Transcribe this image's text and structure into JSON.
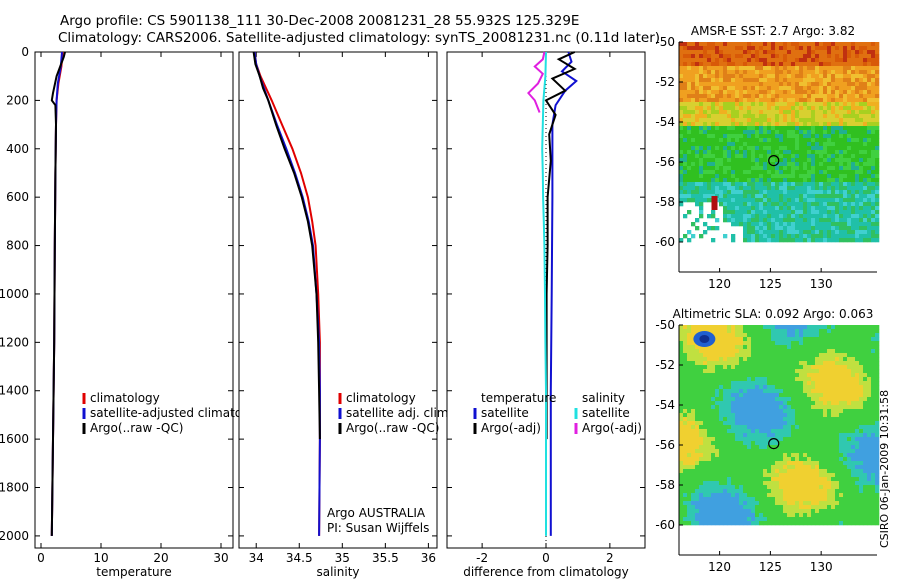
{
  "header": {
    "line1": "Argo profile: CS 5901138_111 30-Dec-2008 20081231_28 55.932S 125.329E",
    "line2": "Climatology: CARS2006. Satellite-adjusted climatology: synTS_20081231.nc (0.11d later)"
  },
  "side_label": "CSIRO 06-Jan-2009 10:31:58",
  "colors": {
    "climatology": "#e00000",
    "satellite": "#1010d0",
    "argo": "#000000",
    "argo_adj": "#e020e0",
    "sat_salinity": "#20e0e0",
    "marker": "#000000"
  },
  "chart_data": [
    {
      "type": "line",
      "name": "temperature-profile",
      "xlabel": "temperature",
      "xlim": [
        -1,
        32
      ],
      "ylim": [
        2050,
        0
      ],
      "xticks": [
        0,
        10,
        20,
        30
      ],
      "yticks": [
        0,
        200,
        400,
        600,
        800,
        1000,
        1200,
        1400,
        1600,
        1800,
        2000
      ],
      "legend": [
        "climatology",
        "satellite-adjusted climatology",
        "Argo(..raw -QC)"
      ],
      "series": [
        {
          "name": "climatology",
          "color_key": "climatology",
          "points": [
            [
              3.6,
              0
            ],
            [
              3.4,
              60
            ],
            [
              2.9,
              130
            ],
            [
              2.6,
              200
            ],
            [
              2.5,
              300
            ],
            [
              2.4,
              500
            ],
            [
              2.3,
              800
            ],
            [
              2.2,
              1200
            ],
            [
              2.0,
              1600
            ],
            [
              1.8,
              2000
            ]
          ]
        },
        {
          "name": "satellite-adjusted climatology",
          "color_key": "satellite",
          "points": [
            [
              3.5,
              0
            ],
            [
              3.3,
              60
            ],
            [
              2.8,
              130
            ],
            [
              2.6,
              200
            ],
            [
              2.5,
              300
            ],
            [
              2.4,
              500
            ],
            [
              2.3,
              800
            ],
            [
              2.2,
              1200
            ],
            [
              2.0,
              1600
            ],
            [
              1.8,
              2000
            ]
          ]
        },
        {
          "name": "Argo(..raw -QC)",
          "color_key": "argo",
          "points": [
            [
              4.0,
              0
            ],
            [
              3.8,
              20
            ],
            [
              3.2,
              60
            ],
            [
              2.6,
              100
            ],
            [
              2.0,
              170
            ],
            [
              1.8,
              200
            ],
            [
              2.4,
              220
            ],
            [
              2.5,
              300
            ],
            [
              2.4,
              500
            ],
            [
              2.3,
              800
            ],
            [
              2.2,
              1200
            ],
            [
              2.0,
              1600
            ],
            [
              1.8,
              2000
            ]
          ]
        }
      ]
    },
    {
      "type": "line",
      "name": "salinity-profile",
      "xlabel": "salinity",
      "xlim": [
        33.8,
        36.1
      ],
      "ylim": [
        2050,
        0
      ],
      "xticks": [
        34,
        34.5,
        35,
        35.5,
        36
      ],
      "xtick_labels": [
        "34",
        "34.5",
        "35",
        "35.5",
        "36"
      ],
      "legend": [
        "climatology",
        "satellite adj. clim.",
        "Argo(..raw -QC)"
      ],
      "annotation": [
        "Argo AUSTRALIA",
        "PI: Susan Wijffels"
      ],
      "series": [
        {
          "name": "climatology",
          "color_key": "climatology",
          "points": [
            [
              33.98,
              0
            ],
            [
              34.0,
              50
            ],
            [
              34.05,
              100
            ],
            [
              34.18,
              200
            ],
            [
              34.3,
              300
            ],
            [
              34.42,
              400
            ],
            [
              34.52,
              500
            ],
            [
              34.6,
              600
            ],
            [
              34.65,
              700
            ],
            [
              34.69,
              800
            ],
            [
              34.72,
              1000
            ],
            [
              34.74,
              1200
            ],
            [
              34.74,
              1400
            ],
            [
              34.74,
              1600
            ],
            [
              34.73,
              2000
            ]
          ]
        },
        {
          "name": "satellite adj. clim.",
          "color_key": "satellite",
          "points": [
            [
              33.98,
              0
            ],
            [
              34.0,
              50
            ],
            [
              34.04,
              100
            ],
            [
              34.14,
              200
            ],
            [
              34.24,
              300
            ],
            [
              34.35,
              400
            ],
            [
              34.45,
              500
            ],
            [
              34.54,
              600
            ],
            [
              34.61,
              700
            ],
            [
              34.66,
              800
            ],
            [
              34.7,
              1000
            ],
            [
              34.73,
              1200
            ],
            [
              34.74,
              1400
            ],
            [
              34.74,
              1600
            ],
            [
              34.73,
              2000
            ]
          ]
        },
        {
          "name": "Argo(..raw -QC)",
          "color_key": "argo",
          "points": [
            [
              33.97,
              0
            ],
            [
              33.99,
              50
            ],
            [
              34.04,
              100
            ],
            [
              34.08,
              150
            ],
            [
              34.14,
              200
            ],
            [
              34.23,
              300
            ],
            [
              34.33,
              400
            ],
            [
              34.44,
              500
            ],
            [
              34.53,
              600
            ],
            [
              34.6,
              700
            ],
            [
              34.65,
              800
            ],
            [
              34.7,
              1000
            ],
            [
              34.72,
              1200
            ],
            [
              34.73,
              1400
            ],
            [
              34.74,
              1600
            ]
          ]
        }
      ]
    },
    {
      "type": "line",
      "name": "difference-profile",
      "xlabel": "difference from climatology",
      "xlim": [
        -3.1,
        3.1
      ],
      "ylim": [
        2050,
        0
      ],
      "xticks": [
        -2,
        0,
        2
      ],
      "legend_left_title": "temperature",
      "legend_left": [
        "satellite",
        "Argo(-adj)"
      ],
      "legend_right_title": "salinity",
      "legend_right": [
        "satellite",
        "Argo(-adj)"
      ],
      "series": [
        {
          "name": "temperature satellite",
          "color_key": "satellite",
          "points": [
            [
              0.7,
              0
            ],
            [
              0.8,
              40
            ],
            [
              0.5,
              80
            ],
            [
              0.95,
              120
            ],
            [
              0.6,
              160
            ],
            [
              0.3,
              220
            ],
            [
              0.2,
              300
            ],
            [
              0.2,
              600
            ],
            [
              0.18,
              1000
            ],
            [
              0.15,
              1400
            ],
            [
              0.15,
              2000
            ]
          ]
        },
        {
          "name": "temperature Argo(-adj)",
          "color_key": "argo",
          "points": [
            [
              0.9,
              0
            ],
            [
              0.4,
              30
            ],
            [
              0.9,
              70
            ],
            [
              0.2,
              110
            ],
            [
              0.6,
              160
            ],
            [
              0.0,
              200
            ],
            [
              0.3,
              260
            ],
            [
              0.1,
              340
            ],
            [
              0.15,
              450
            ],
            [
              0.05,
              600
            ],
            [
              0.05,
              800
            ],
            [
              0.02,
              1000
            ],
            [
              0.02,
              1400
            ],
            [
              0.02,
              1600
            ]
          ]
        },
        {
          "name": "salinity satellite",
          "color_key": "sat_salinity",
          "points": [
            [
              0.0,
              0
            ],
            [
              -0.02,
              100
            ],
            [
              -0.08,
              200
            ],
            [
              -0.1,
              300
            ],
            [
              -0.12,
              400
            ],
            [
              -0.1,
              500
            ],
            [
              -0.09,
              600
            ],
            [
              -0.07,
              700
            ],
            [
              -0.05,
              800
            ],
            [
              -0.03,
              1000
            ],
            [
              -0.02,
              1200
            ],
            [
              0.0,
              1400
            ],
            [
              0.0,
              2000
            ]
          ]
        },
        {
          "name": "salinity Argo(-adj)",
          "color_key": "argo_adj",
          "points": [
            [
              -0.05,
              0
            ],
            [
              -0.1,
              30
            ],
            [
              -0.35,
              60
            ],
            [
              -0.1,
              90
            ],
            [
              -0.25,
              130
            ],
            [
              -0.55,
              170
            ],
            [
              -0.35,
              200
            ],
            [
              -0.2,
              250
            ]
          ]
        }
      ]
    },
    {
      "type": "heatmap",
      "name": "sst-map",
      "title": "AMSR-E SST: 2.7 Argo: 3.82",
      "xlim": [
        116,
        135.5
      ],
      "ylim": [
        -61.5,
        -50
      ],
      "xticks": [
        120,
        125,
        130
      ],
      "yticks": [
        -50,
        -52,
        -54,
        -56,
        -58,
        -60
      ],
      "marker": [
        125.33,
        -55.93
      ]
    },
    {
      "type": "heatmap",
      "name": "sla-map",
      "title": "Altimetric SLA: 0.092 Argo: 0.063",
      "xlim": [
        116,
        135.5
      ],
      "ylim": [
        -61.5,
        -50
      ],
      "xticks": [
        120,
        125,
        130
      ],
      "yticks": [
        -50,
        -52,
        -54,
        -56,
        -58,
        -60
      ],
      "marker": [
        125.33,
        -55.93
      ]
    }
  ]
}
